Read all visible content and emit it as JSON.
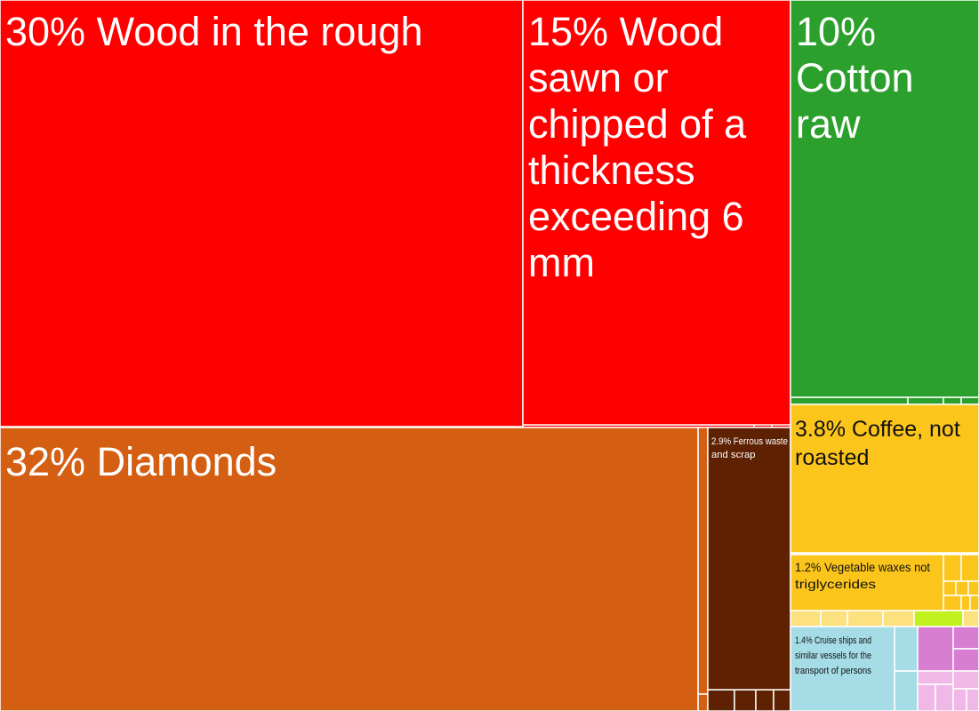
{
  "chart_data": {
    "type": "treemap",
    "tiles": [
      {
        "id": "wood-rough",
        "value": 30,
        "label": "30% Wood in the rough",
        "color": "#ff0000"
      },
      {
        "id": "wood-sawn",
        "value": 15,
        "label": "15% Wood sawn or chipped of a thickness exceeding 6 mm",
        "color": "#ff0000"
      },
      {
        "id": "cotton-raw",
        "value": 10,
        "label": "10% Cotton raw",
        "color": "#2ca02c"
      },
      {
        "id": "diamonds",
        "value": 32,
        "label": "32% Diamonds",
        "color": "#d45f12"
      },
      {
        "id": "ferrous-waste",
        "value": 2.9,
        "label": "2.9% Ferrous waste and scrap",
        "color": "#5e2102"
      },
      {
        "id": "coffee",
        "value": 3.8,
        "label": "3.8% Coffee, not roasted",
        "color": "#fcc51c"
      },
      {
        "id": "vegetable-waxes",
        "value": 1.2,
        "label": "1.2% Vegetable waxes not triglycerides",
        "color": "#fcc51c"
      },
      {
        "id": "cruise-ships",
        "value": 1.4,
        "label": "1.4% Cruise ships and similar vessels for the transport of persons",
        "color": "#a6dce6"
      }
    ],
    "colors": {
      "wood": "#ff0000",
      "cotton": "#2ca02c",
      "minerals": "#d45f12",
      "metals": "#5e2102",
      "foodstuffs": "#fcc51c",
      "foodstuffs_light": "#fde17e",
      "lime": "#c2f21d",
      "transport": "#a6dce6",
      "pink": "#d87ed2",
      "pink_light": "#f0b8e6",
      "border": "#ffffff"
    }
  }
}
